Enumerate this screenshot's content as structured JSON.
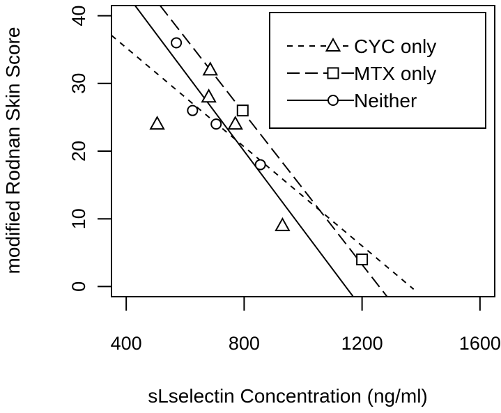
{
  "chart_data": {
    "type": "scatter",
    "xlabel": "sLselectin Concentration (ng/ml)",
    "ylabel": "modified Rodnan Skin Score",
    "xlim": [
      350,
      1650
    ],
    "ylim": [
      -1.5,
      41.5
    ],
    "xticks": [
      400,
      800,
      1200,
      1600
    ],
    "xtick_labels": [
      "400",
      "800",
      "1200",
      "1600"
    ],
    "yticks": [
      0,
      10,
      20,
      30,
      40
    ],
    "ytick_labels": [
      "0",
      "10",
      "20",
      "30",
      "40"
    ],
    "legend_position": "top-right",
    "series": [
      {
        "name": "CYC only",
        "marker": "triangle",
        "line_style": "short-dash",
        "points": [
          [
            505,
            24
          ],
          [
            685,
            32
          ],
          [
            680,
            28
          ],
          [
            770,
            24
          ],
          [
            930,
            9
          ]
        ],
        "fit_line": [
          [
            350,
            37.1
          ],
          [
            1375,
            -0.4
          ]
        ]
      },
      {
        "name": "MTX only",
        "marker": "square",
        "line_style": "long-dash",
        "points": [
          [
            795,
            26
          ],
          [
            1200,
            4
          ]
        ],
        "fit_line": [
          [
            515,
            41.5
          ],
          [
            1285,
            -1.5
          ]
        ]
      },
      {
        "name": "Neither",
        "marker": "circle",
        "line_style": "solid",
        "points": [
          [
            570,
            36
          ],
          [
            625,
            26
          ],
          [
            705,
            24
          ],
          [
            855,
            18
          ]
        ],
        "fit_line": [
          [
            430,
            41.5
          ],
          [
            1170,
            -1.5
          ]
        ]
      }
    ]
  }
}
